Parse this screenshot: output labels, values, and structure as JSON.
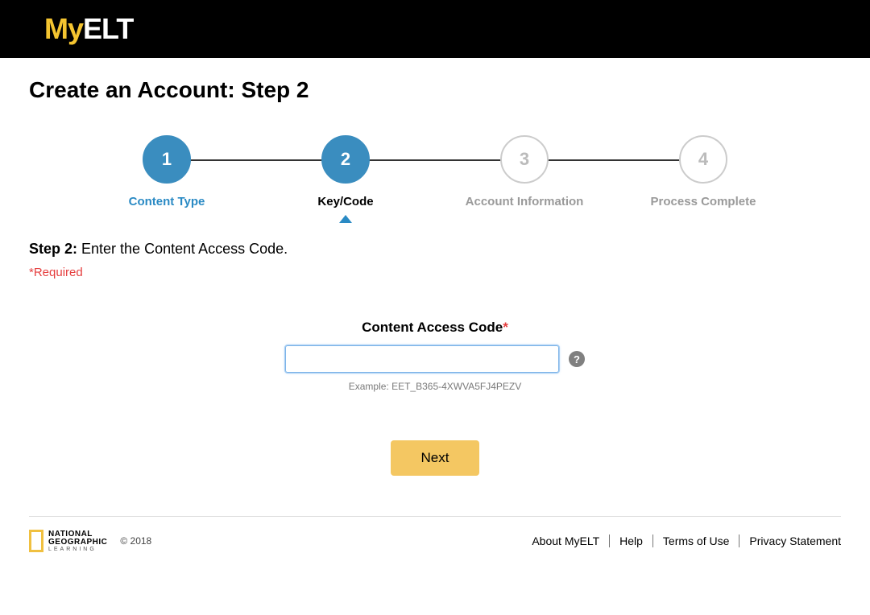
{
  "header": {
    "logo_my": "My",
    "logo_elt": "ELT"
  },
  "page": {
    "title": "Create an Account: Step 2",
    "step_title_bold": "Step 2:",
    "step_title_rest": " Enter the Content Access Code.",
    "required_note": "*Required"
  },
  "stepper": {
    "steps": [
      {
        "num": "1",
        "label": "Content Type",
        "state": "completed"
      },
      {
        "num": "2",
        "label": "Key/Code",
        "state": "current"
      },
      {
        "num": "3",
        "label": "Account Information",
        "state": "inactive"
      },
      {
        "num": "4",
        "label": "Process Complete",
        "state": "inactive"
      }
    ],
    "active_color": "#3a8dbf",
    "inactive_border": "#cccccc",
    "line_color": "#333333"
  },
  "form": {
    "label": "Content Access Code",
    "asterisk": "*",
    "value": "",
    "example": "Example: EET_B365-4XWVA5FJ4PEZV",
    "help_icon": "?",
    "next_button": "Next"
  },
  "footer": {
    "ngl_line1": "NATIONAL",
    "ngl_line2": "GEOGRAPHIC",
    "ngl_line3": "LEARNING",
    "copyright": "© 2018",
    "links": [
      "About MyELT",
      "Help",
      "Terms of Use",
      "Privacy Statement"
    ]
  },
  "colors": {
    "brand_yellow": "#f4c430",
    "button_yellow": "#f4c762",
    "required_red": "#e53e3e",
    "link_blue": "#2a8ac4"
  }
}
